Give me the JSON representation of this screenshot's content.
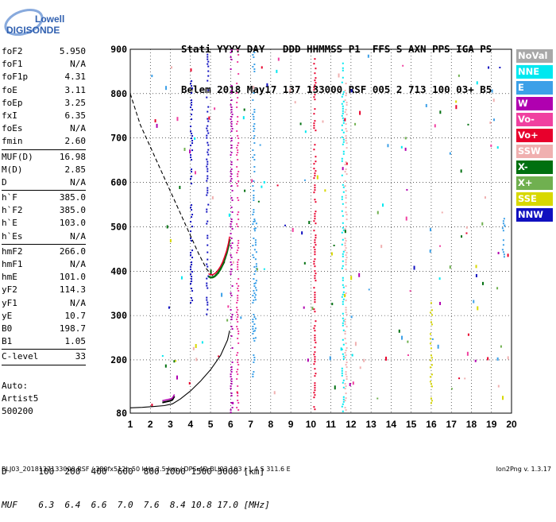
{
  "logo": {
    "line1": "Lowell",
    "line2": "DIGISONDE"
  },
  "header": {
    "labels": [
      "Stati",
      "YYYY",
      "DAY",
      "DDD",
      "HHMMSS",
      "P1",
      "FFS",
      "S",
      "AXN",
      "PPS",
      "IGA",
      "PS"
    ],
    "values": [
      "Belem",
      "2018",
      "May17",
      "137",
      "133000",
      "RSF",
      "005",
      "2",
      "713",
      "100",
      "03+",
      "B5"
    ]
  },
  "params": [
    {
      "k": "foF2",
      "v": "5.950"
    },
    {
      "k": "foF1",
      "v": "N/A"
    },
    {
      "k": "foF1p",
      "v": "4.31"
    },
    {
      "k": "foE",
      "v": "3.11"
    },
    {
      "k": "foEp",
      "v": "3.25"
    },
    {
      "k": "fxI",
      "v": "6.35"
    },
    {
      "k": "foEs",
      "v": "N/A"
    },
    {
      "k": "fmin",
      "v": "2.60"
    },
    {
      "sep": true
    },
    {
      "k": "MUF(D)",
      "v": "16.98"
    },
    {
      "k": "M(D)",
      "v": "2.85"
    },
    {
      "k": "D",
      "v": "N/A"
    },
    {
      "sep": true
    },
    {
      "k": "h`F",
      "v": "385.0"
    },
    {
      "k": "h`F2",
      "v": "385.0"
    },
    {
      "k": "h`E",
      "v": "103.0"
    },
    {
      "k": "h`Es",
      "v": "N/A"
    },
    {
      "sep": true
    },
    {
      "k": "hmF2",
      "v": "266.0"
    },
    {
      "k": "hmF1",
      "v": "N/A"
    },
    {
      "k": "hmE",
      "v": "101.0"
    },
    {
      "k": "yF2",
      "v": "114.3"
    },
    {
      "k": "yF1",
      "v": "N/A"
    },
    {
      "k": "yE",
      "v": "10.7"
    },
    {
      "k": "B0",
      "v": "198.7"
    },
    {
      "k": "B1",
      "v": "1.05"
    },
    {
      "sep": true
    },
    {
      "k": "C-level",
      "v": "33"
    },
    {
      "sep": true
    }
  ],
  "auto": [
    "Auto:",
    "Artist5",
    "500200"
  ],
  "legend": [
    {
      "label": "NoVal",
      "color": "#a8a8a8"
    },
    {
      "label": "NNE",
      "color": "#00e8f0"
    },
    {
      "label": "E",
      "color": "#3ca0e8"
    },
    {
      "label": "W",
      "color": "#b000b0"
    },
    {
      "label": "Vo-",
      "color": "#f040a0"
    },
    {
      "label": "Vo+",
      "color": "#e8002c"
    },
    {
      "label": "SSW",
      "color": "#f0b0b0"
    },
    {
      "label": "X-",
      "color": "#007010"
    },
    {
      "label": "X+",
      "color": "#70b050"
    },
    {
      "label": "SSE",
      "color": "#d8d800"
    },
    {
      "label": "NNW",
      "color": "#1010c0"
    }
  ],
  "dmuf": {
    "d_label": "D",
    "d_values": [
      "100",
      "200",
      "400",
      "600",
      "800",
      "1000",
      "1500",
      "3000"
    ],
    "d_unit": "[km]",
    "muf_label": "MUF",
    "muf_values": [
      "6.3",
      "6.4",
      "6.6",
      "7.0",
      "7.6",
      "8.4",
      "10.8",
      "17.0"
    ],
    "muf_unit": "[MHz]"
  },
  "footer": "BLJ03_2018137133000.RSF / 380fx512h 50 kHz 2.5 km / DPS-4D BLJ03 103 / 1.4 S 311.6 E",
  "version": "Ion2Png v. 1.3.17",
  "chart_data": {
    "type": "scatter",
    "xlim": [
      1,
      20
    ],
    "ylim": [
      80,
      900
    ],
    "x_ticks": [
      1,
      2,
      3,
      4,
      5,
      6,
      7,
      8,
      9,
      10,
      11,
      12,
      13,
      14,
      15,
      16,
      17,
      18,
      19,
      20
    ],
    "y_ticks": [
      80,
      200,
      300,
      400,
      500,
      600,
      700,
      800,
      900
    ],
    "grid": true,
    "profile_curve": {
      "x": [
        1.0,
        1.6,
        2.2,
        2.7,
        3.1,
        3.5,
        4.0,
        4.5,
        5.0,
        5.5,
        5.85,
        5.95
      ],
      "y": [
        92,
        93,
        95,
        97,
        101,
        112,
        130,
        152,
        178,
        210,
        245,
        266
      ]
    },
    "extrapolated_profile": {
      "x": [
        1.0,
        1.5,
        2.0,
        2.5,
        3.0,
        3.5,
        4.0,
        4.4,
        4.8,
        5.1,
        5.4,
        5.7,
        5.9
      ],
      "y": [
        800,
        730,
        680,
        630,
        580,
        530,
        480,
        440,
        405,
        390,
        395,
        420,
        460
      ]
    },
    "e_trace": {
      "x": [
        2.6,
        2.8,
        3.0,
        3.1,
        3.2
      ],
      "y": [
        104,
        106,
        108,
        110,
        118
      ]
    },
    "f_trace": {
      "x": [
        4.9,
        5.0,
        5.1,
        5.2,
        5.3,
        5.4,
        5.5,
        5.6,
        5.7,
        5.8,
        5.9,
        5.95
      ],
      "y": [
        388,
        386,
        386,
        388,
        392,
        398,
        405,
        414,
        426,
        440,
        458,
        472
      ]
    },
    "echo_columns": [
      {
        "x": 4.05,
        "y0": 330,
        "y1": 830,
        "color": "#1010c0"
      },
      {
        "x": 4.85,
        "y0": 300,
        "y1": 890,
        "color": "#1010c0"
      },
      {
        "x": 6.05,
        "y0": 80,
        "y1": 900,
        "color": "#b000b0"
      },
      {
        "x": 6.35,
        "y0": 80,
        "y1": 900,
        "color": "#f040a0"
      },
      {
        "x": 7.15,
        "y0": 160,
        "y1": 900,
        "color": "#3ca0e8"
      },
      {
        "x": 7.25,
        "y0": 250,
        "y1": 520,
        "color": "#3ca0e8"
      },
      {
        "x": 10.2,
        "y0": 80,
        "y1": 880,
        "color": "#e8002c"
      },
      {
        "x": 11.6,
        "y0": 80,
        "y1": 870,
        "color": "#00e8f0"
      },
      {
        "x": 11.75,
        "y0": 80,
        "y1": 830,
        "color": "#f0b0b0"
      },
      {
        "x": 16.0,
        "y0": 100,
        "y1": 330,
        "color": "#d8d800"
      },
      {
        "x": 19.6,
        "y0": 430,
        "y1": 520,
        "color": "#3ca0e8"
      }
    ]
  }
}
